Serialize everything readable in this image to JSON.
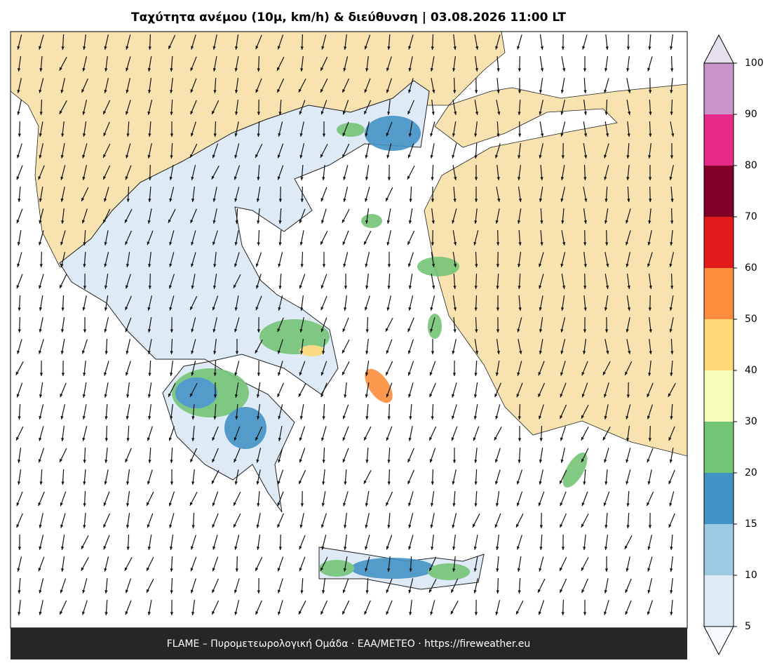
{
  "title": "Ταχύτητα ανέμου (10μ, km/h) & διεύθυνση  |  03.08.2026 11:00 LT",
  "footer": "FLAME – Πυρομετεωρολογική Ομάδα · ΕΑΑ/METEO · https://fireweather.eu",
  "colorbar": {
    "ticks": [
      5,
      10,
      15,
      20,
      30,
      40,
      50,
      60,
      70,
      80,
      90,
      100
    ],
    "colors": [
      "#deebf7",
      "#9ecae1",
      "#4292c6",
      "#74c476",
      "#f7fcb9",
      "#fed976",
      "#fd8d3c",
      "#e31a1c",
      "#800026",
      "#e7298a",
      "#c994c7"
    ],
    "under_color": "#f7fbff",
    "over_color": "#e7e1ef"
  }
}
